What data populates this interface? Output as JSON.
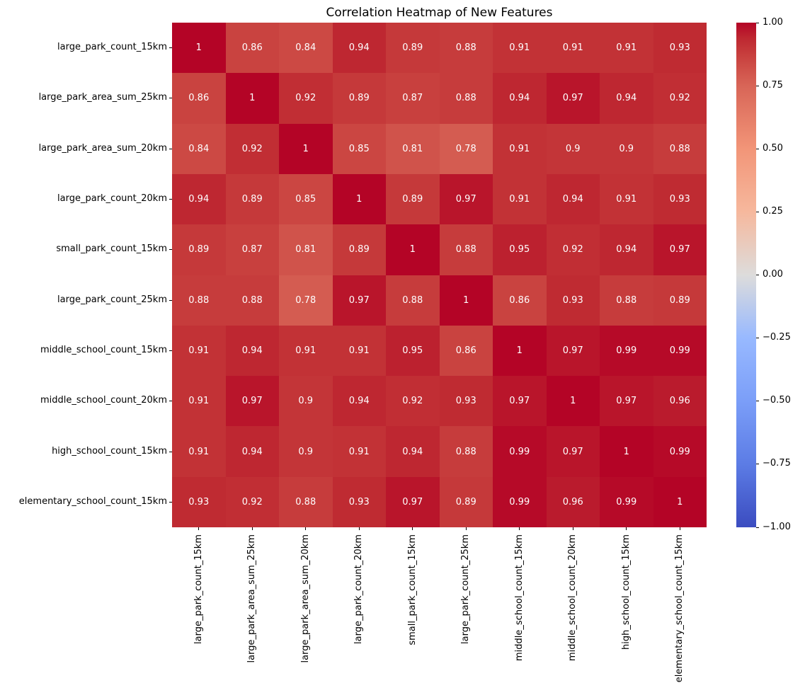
{
  "chart_data": {
    "type": "heatmap",
    "title": "Correlation Heatmap of New Features",
    "categories": [
      "large_park_count_15km",
      "large_park_area_sum_25km",
      "large_park_area_sum_20km",
      "large_park_count_20km",
      "small_park_count_15km",
      "large_park_count_25km",
      "middle_school_count_15km",
      "middle_school_count_20km",
      "high_school_count_15km",
      "elementary_school_count_15km"
    ],
    "matrix": [
      [
        1,
        0.86,
        0.84,
        0.94,
        0.89,
        0.88,
        0.91,
        0.91,
        0.91,
        0.93
      ],
      [
        0.86,
        1,
        0.92,
        0.89,
        0.87,
        0.88,
        0.94,
        0.97,
        0.94,
        0.92
      ],
      [
        0.84,
        0.92,
        1,
        0.85,
        0.81,
        0.78,
        0.91,
        0.9,
        0.9,
        0.88
      ],
      [
        0.94,
        0.89,
        0.85,
        1,
        0.89,
        0.97,
        0.91,
        0.94,
        0.91,
        0.93
      ],
      [
        0.89,
        0.87,
        0.81,
        0.89,
        1,
        0.88,
        0.95,
        0.92,
        0.94,
        0.97
      ],
      [
        0.88,
        0.88,
        0.78,
        0.97,
        0.88,
        1,
        0.86,
        0.93,
        0.88,
        0.89
      ],
      [
        0.91,
        0.94,
        0.91,
        0.91,
        0.95,
        0.86,
        1,
        0.97,
        0.99,
        0.99
      ],
      [
        0.91,
        0.97,
        0.9,
        0.94,
        0.92,
        0.93,
        0.97,
        1,
        0.97,
        0.96
      ],
      [
        0.91,
        0.94,
        0.9,
        0.91,
        0.94,
        0.88,
        0.99,
        0.97,
        1,
        0.99
      ],
      [
        0.93,
        0.92,
        0.88,
        0.93,
        0.97,
        0.89,
        0.99,
        0.96,
        0.99,
        1
      ]
    ],
    "colormap": "coolwarm",
    "vmin": -1,
    "vmax": 1,
    "annotation_color": "#ffffff",
    "colormap_max_color": "#b40426",
    "colormap_mid_color": "#dddcdb",
    "colormap_min_color": "#3b4cc0",
    "colorbar_ticks": [
      {
        "value": 1.0,
        "label": "1.00"
      },
      {
        "value": 0.75,
        "label": "0.75"
      },
      {
        "value": 0.5,
        "label": "0.50"
      },
      {
        "value": 0.25,
        "label": "0.25"
      },
      {
        "value": 0.0,
        "label": "0.00"
      },
      {
        "value": -0.25,
        "label": "−0.25"
      },
      {
        "value": -0.5,
        "label": "−0.50"
      },
      {
        "value": -0.75,
        "label": "−0.75"
      },
      {
        "value": -1.0,
        "label": "−1.00"
      }
    ],
    "legend_position": "right-colorbar",
    "grid": false
  }
}
